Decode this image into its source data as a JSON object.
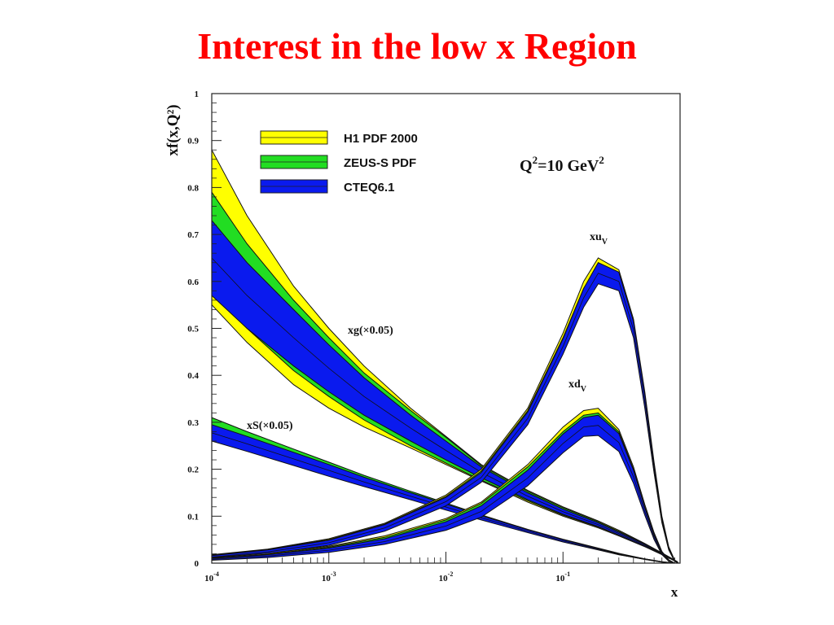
{
  "slide": {
    "title": "Interest in the low x Region"
  },
  "chart_data": {
    "type": "area",
    "xlabel": "x",
    "ylabel": "xf(x,Q²)",
    "x_scale": "log",
    "xlim": [
      0.0001,
      1
    ],
    "ylim": [
      0,
      1
    ],
    "x_ticks": [
      {
        "value": 0.0001,
        "base": "10",
        "exp": "-4"
      },
      {
        "value": 0.001,
        "base": "10",
        "exp": "-3"
      },
      {
        "value": 0.01,
        "base": "10",
        "exp": "-2"
      },
      {
        "value": 0.1,
        "base": "10",
        "exp": "-1"
      }
    ],
    "y_ticks": [
      {
        "value": 0,
        "label": "0"
      },
      {
        "value": 0.1,
        "label": "0.1"
      },
      {
        "value": 0.2,
        "label": "0.2"
      },
      {
        "value": 0.3,
        "label": "0.3"
      },
      {
        "value": 0.4,
        "label": "0.4"
      },
      {
        "value": 0.5,
        "label": "0.5"
      },
      {
        "value": 0.6,
        "label": "0.6"
      },
      {
        "value": 0.7,
        "label": "0.7"
      },
      {
        "value": 0.8,
        "label": "0.8"
      },
      {
        "value": 0.9,
        "label": "0.9"
      },
      {
        "value": 1,
        "label": "1"
      }
    ],
    "grid": false,
    "legend": {
      "position": "top-left",
      "entries": [
        {
          "label": "H1 PDF 2000",
          "color": "#ffff00"
        },
        {
          "label": "ZEUS-S PDF",
          "color": "#22dd22"
        },
        {
          "label": "CTEQ6.1",
          "color": "#0a1aee"
        }
      ]
    },
    "annotation": {
      "base": "Q",
      "sup1": "2",
      "mid": "=10 GeV",
      "sup2": "2"
    },
    "curve_labels": {
      "xuv": {
        "main": "xu",
        "sub": "V"
      },
      "xdv": {
        "main": "xd",
        "sub": "V"
      },
      "xg": "xg(×0.05)",
      "xs": "xS(×0.05)"
    },
    "series": [
      {
        "name": "xg(×0.05)",
        "x": [
          0.0001,
          0.0002,
          0.0005,
          0.001,
          0.002,
          0.005,
          0.01,
          0.02,
          0.05,
          0.1,
          0.2,
          0.3,
          0.5,
          0.7,
          0.85,
          0.95
        ],
        "bands": {
          "H1 PDF 2000": {
            "low": [
              0.55,
              0.47,
              0.38,
              0.33,
              0.29,
              0.245,
              0.21,
              0.175,
              0.13,
              0.1,
              0.075,
              0.058,
              0.035,
              0.018,
              0.008,
              0.002
            ],
            "high": [
              0.88,
              0.74,
              0.59,
              0.5,
              0.42,
              0.33,
              0.27,
              0.21,
              0.155,
              0.12,
              0.09,
              0.07,
              0.042,
              0.022,
              0.01,
              0.003
            ]
          },
          "ZEUS-S PDF": {
            "low": [
              0.58,
              0.5,
              0.41,
              0.355,
              0.305,
              0.25,
              0.213,
              0.177,
              0.133,
              0.102,
              0.077,
              0.06,
              0.036,
              0.019,
              0.008,
              0.002
            ],
            "high": [
              0.79,
              0.68,
              0.56,
              0.48,
              0.405,
              0.325,
              0.268,
              0.208,
              0.153,
              0.118,
              0.088,
              0.068,
              0.041,
              0.021,
              0.009,
              0.003
            ]
          },
          "CTEQ6.1": {
            "low": [
              0.57,
              0.5,
              0.42,
              0.365,
              0.315,
              0.26,
              0.22,
              0.182,
              0.135,
              0.104,
              0.078,
              0.06,
              0.036,
              0.019,
              0.008,
              0.002
            ],
            "high": [
              0.73,
              0.64,
              0.54,
              0.465,
              0.395,
              0.315,
              0.26,
              0.205,
              0.15,
              0.115,
              0.086,
              0.066,
              0.04,
              0.021,
              0.009,
              0.003
            ]
          }
        }
      },
      {
        "name": "xS(×0.05)",
        "x": [
          0.0001,
          0.0002,
          0.0005,
          0.001,
          0.002,
          0.005,
          0.01,
          0.02,
          0.05,
          0.1,
          0.2,
          0.3,
          0.5,
          0.7,
          0.9
        ],
        "bands": {
          "ZEUS-S PDF": {
            "low": [
              0.27,
              0.245,
              0.213,
              0.19,
              0.167,
              0.138,
              0.116,
              0.094,
              0.066,
              0.046,
              0.029,
              0.018,
              0.008,
              0.002,
              0.0
            ],
            "high": [
              0.31,
              0.28,
              0.243,
              0.215,
              0.187,
              0.153,
              0.128,
              0.103,
              0.072,
              0.051,
              0.032,
              0.021,
              0.009,
              0.003,
              0.0
            ]
          },
          "CTEQ6.1": {
            "low": [
              0.26,
              0.238,
              0.208,
              0.185,
              0.163,
              0.135,
              0.113,
              0.092,
              0.065,
              0.045,
              0.028,
              0.018,
              0.008,
              0.002,
              0.0
            ],
            "high": [
              0.295,
              0.27,
              0.236,
              0.21,
              0.183,
              0.15,
              0.126,
              0.101,
              0.071,
              0.05,
              0.031,
              0.02,
              0.009,
              0.003,
              0.0
            ]
          }
        }
      },
      {
        "name": "xu_V",
        "x": [
          0.0001,
          0.0003,
          0.001,
          0.003,
          0.01,
          0.02,
          0.05,
          0.1,
          0.15,
          0.2,
          0.3,
          0.4,
          0.5,
          0.6,
          0.7,
          0.8,
          0.9,
          0.97
        ],
        "bands": {
          "H1 PDF 2000": {
            "low": [
              0.012,
              0.022,
              0.04,
              0.07,
              0.125,
              0.175,
              0.3,
              0.45,
              0.555,
              0.61,
              0.59,
              0.49,
              0.34,
              0.2,
              0.09,
              0.03,
              0.004,
              0.0
            ],
            "high": [
              0.018,
              0.03,
              0.052,
              0.085,
              0.145,
              0.2,
              0.33,
              0.49,
              0.6,
              0.65,
              0.625,
              0.52,
              0.365,
              0.215,
              0.1,
              0.035,
              0.006,
              0.0
            ]
          },
          "ZEUS-S PDF": {
            "low": [
              0.011,
              0.021,
              0.039,
              0.07,
              0.125,
              0.176,
              0.3,
              0.45,
              0.55,
              0.6,
              0.585,
              0.485,
              0.335,
              0.195,
              0.088,
              0.029,
              0.004,
              0.0
            ],
            "high": [
              0.017,
              0.029,
              0.05,
              0.083,
              0.142,
              0.196,
              0.325,
              0.48,
              0.585,
              0.635,
              0.615,
              0.51,
              0.358,
              0.21,
              0.096,
              0.033,
              0.005,
              0.0
            ]
          },
          "CTEQ6.1": {
            "low": [
              0.01,
              0.02,
              0.038,
              0.068,
              0.122,
              0.172,
              0.295,
              0.445,
              0.545,
              0.595,
              0.58,
              0.48,
              0.33,
              0.192,
              0.086,
              0.028,
              0.004,
              0.0
            ],
            "high": [
              0.016,
              0.028,
              0.049,
              0.082,
              0.14,
              0.193,
              0.322,
              0.478,
              0.585,
              0.64,
              0.62,
              0.515,
              0.36,
              0.21,
              0.095,
              0.032,
              0.005,
              0.0
            ]
          }
        }
      },
      {
        "name": "xd_V",
        "x": [
          0.0001,
          0.0003,
          0.001,
          0.003,
          0.01,
          0.02,
          0.05,
          0.1,
          0.15,
          0.2,
          0.3,
          0.4,
          0.5,
          0.6,
          0.7,
          0.8,
          0.9
        ],
        "bands": {
          "H1 PDF 2000": {
            "low": [
              0.008,
              0.015,
              0.027,
              0.045,
              0.075,
              0.105,
              0.175,
              0.25,
              0.29,
              0.295,
              0.255,
              0.18,
              0.11,
              0.055,
              0.02,
              0.005,
              0.0
            ],
            "high": [
              0.012,
              0.021,
              0.036,
              0.058,
              0.095,
              0.13,
              0.21,
              0.29,
              0.325,
              0.33,
              0.285,
              0.205,
              0.125,
              0.065,
              0.025,
              0.007,
              0.0
            ]
          },
          "ZEUS-S PDF": {
            "low": [
              0.007,
              0.013,
              0.025,
              0.043,
              0.074,
              0.103,
              0.17,
              0.24,
              0.275,
              0.28,
              0.245,
              0.175,
              0.105,
              0.052,
              0.019,
              0.005,
              0.0
            ],
            "high": [
              0.011,
              0.019,
              0.034,
              0.055,
              0.092,
              0.127,
              0.205,
              0.28,
              0.315,
              0.32,
              0.28,
              0.2,
              0.12,
              0.062,
              0.024,
              0.006,
              0.0
            ]
          },
          "CTEQ6.1": {
            "low": [
              0.006,
              0.012,
              0.023,
              0.04,
              0.07,
              0.098,
              0.165,
              0.235,
              0.27,
              0.272,
              0.238,
              0.17,
              0.102,
              0.05,
              0.018,
              0.004,
              0.0
            ],
            "high": [
              0.01,
              0.018,
              0.032,
              0.052,
              0.088,
              0.122,
              0.198,
              0.275,
              0.31,
              0.315,
              0.276,
              0.198,
              0.118,
              0.06,
              0.023,
              0.006,
              0.0
            ]
          }
        }
      }
    ]
  }
}
